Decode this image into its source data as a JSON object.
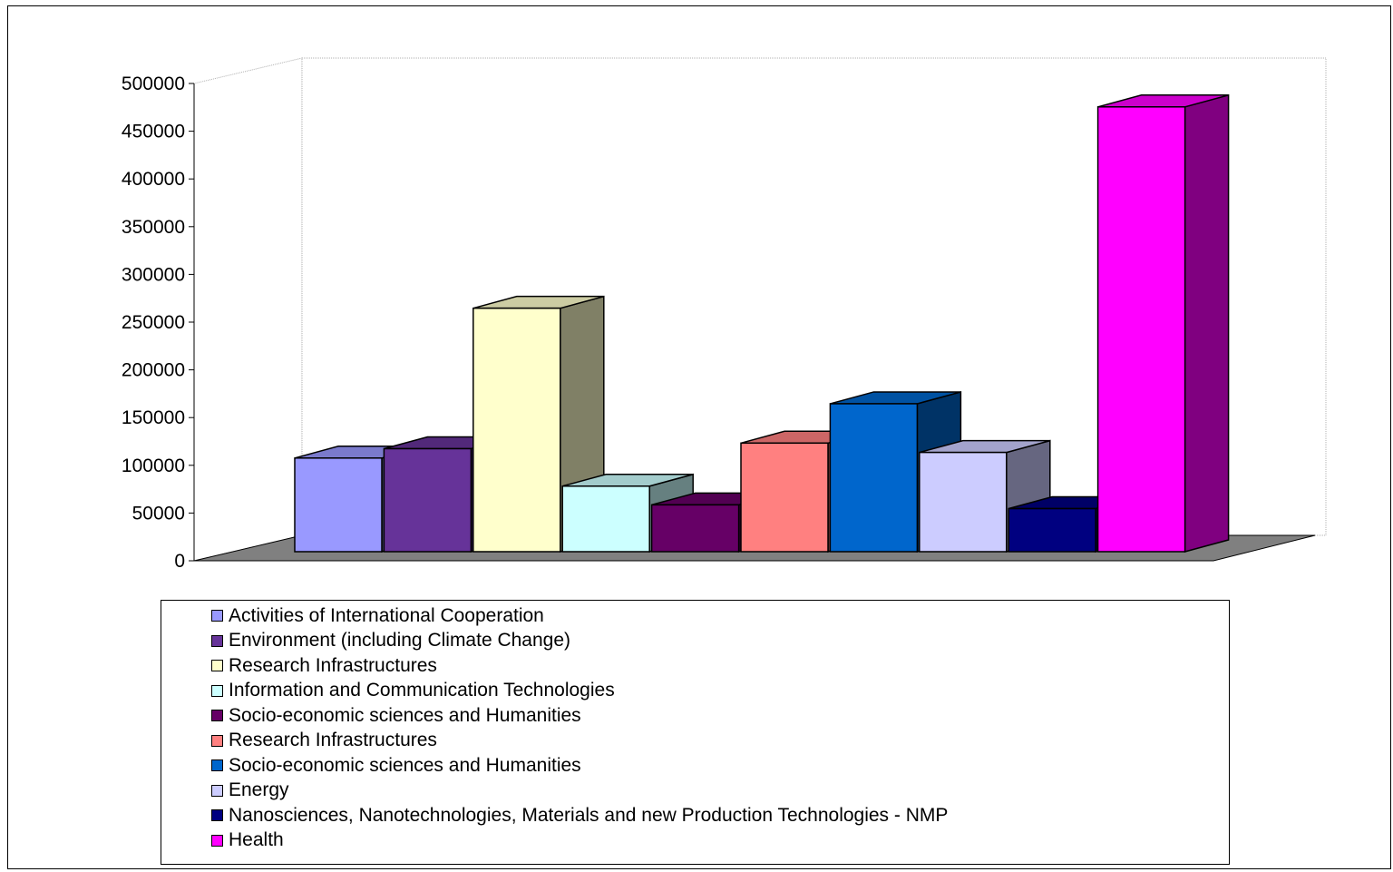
{
  "chart_data": {
    "type": "bar",
    "style": "3d-column",
    "title": "",
    "xlabel": "",
    "ylabel": "",
    "ylim": [
      0,
      500000
    ],
    "yticks": [
      "0",
      "50000",
      "100000",
      "150000",
      "200000",
      "250000",
      "300000",
      "350000",
      "400000",
      "450000",
      "500000"
    ],
    "grid": false,
    "legend_position": "bottom",
    "series": [
      {
        "name": "Activities of International Cooperation",
        "value": 100000,
        "color": "#9999ff"
      },
      {
        "name": "Environment (including Climate Change)",
        "value": 110000,
        "color": "#663399"
      },
      {
        "name": "Research Infrastructures",
        "value": 260000,
        "color": "#ffffcc"
      },
      {
        "name": "Information and Communication Technologies",
        "value": 70000,
        "color": "#ccffff"
      },
      {
        "name": "Socio-economic sciences and Humanities",
        "value": 50000,
        "color": "#660066"
      },
      {
        "name": "Research Infrastructures",
        "value": 116000,
        "color": "#ff8080"
      },
      {
        "name": "Socio-economic sciences and Humanities",
        "value": 158000,
        "color": "#0066cc"
      },
      {
        "name": "Energy",
        "value": 106000,
        "color": "#ccccff"
      },
      {
        "name": "Nanosciences, Nanotechnologies, Materials and new  Production Technologies - NMP",
        "value": 46000,
        "color": "#000080"
      },
      {
        "name": "Health",
        "value": 475000,
        "color": "#ff00ff"
      }
    ]
  }
}
